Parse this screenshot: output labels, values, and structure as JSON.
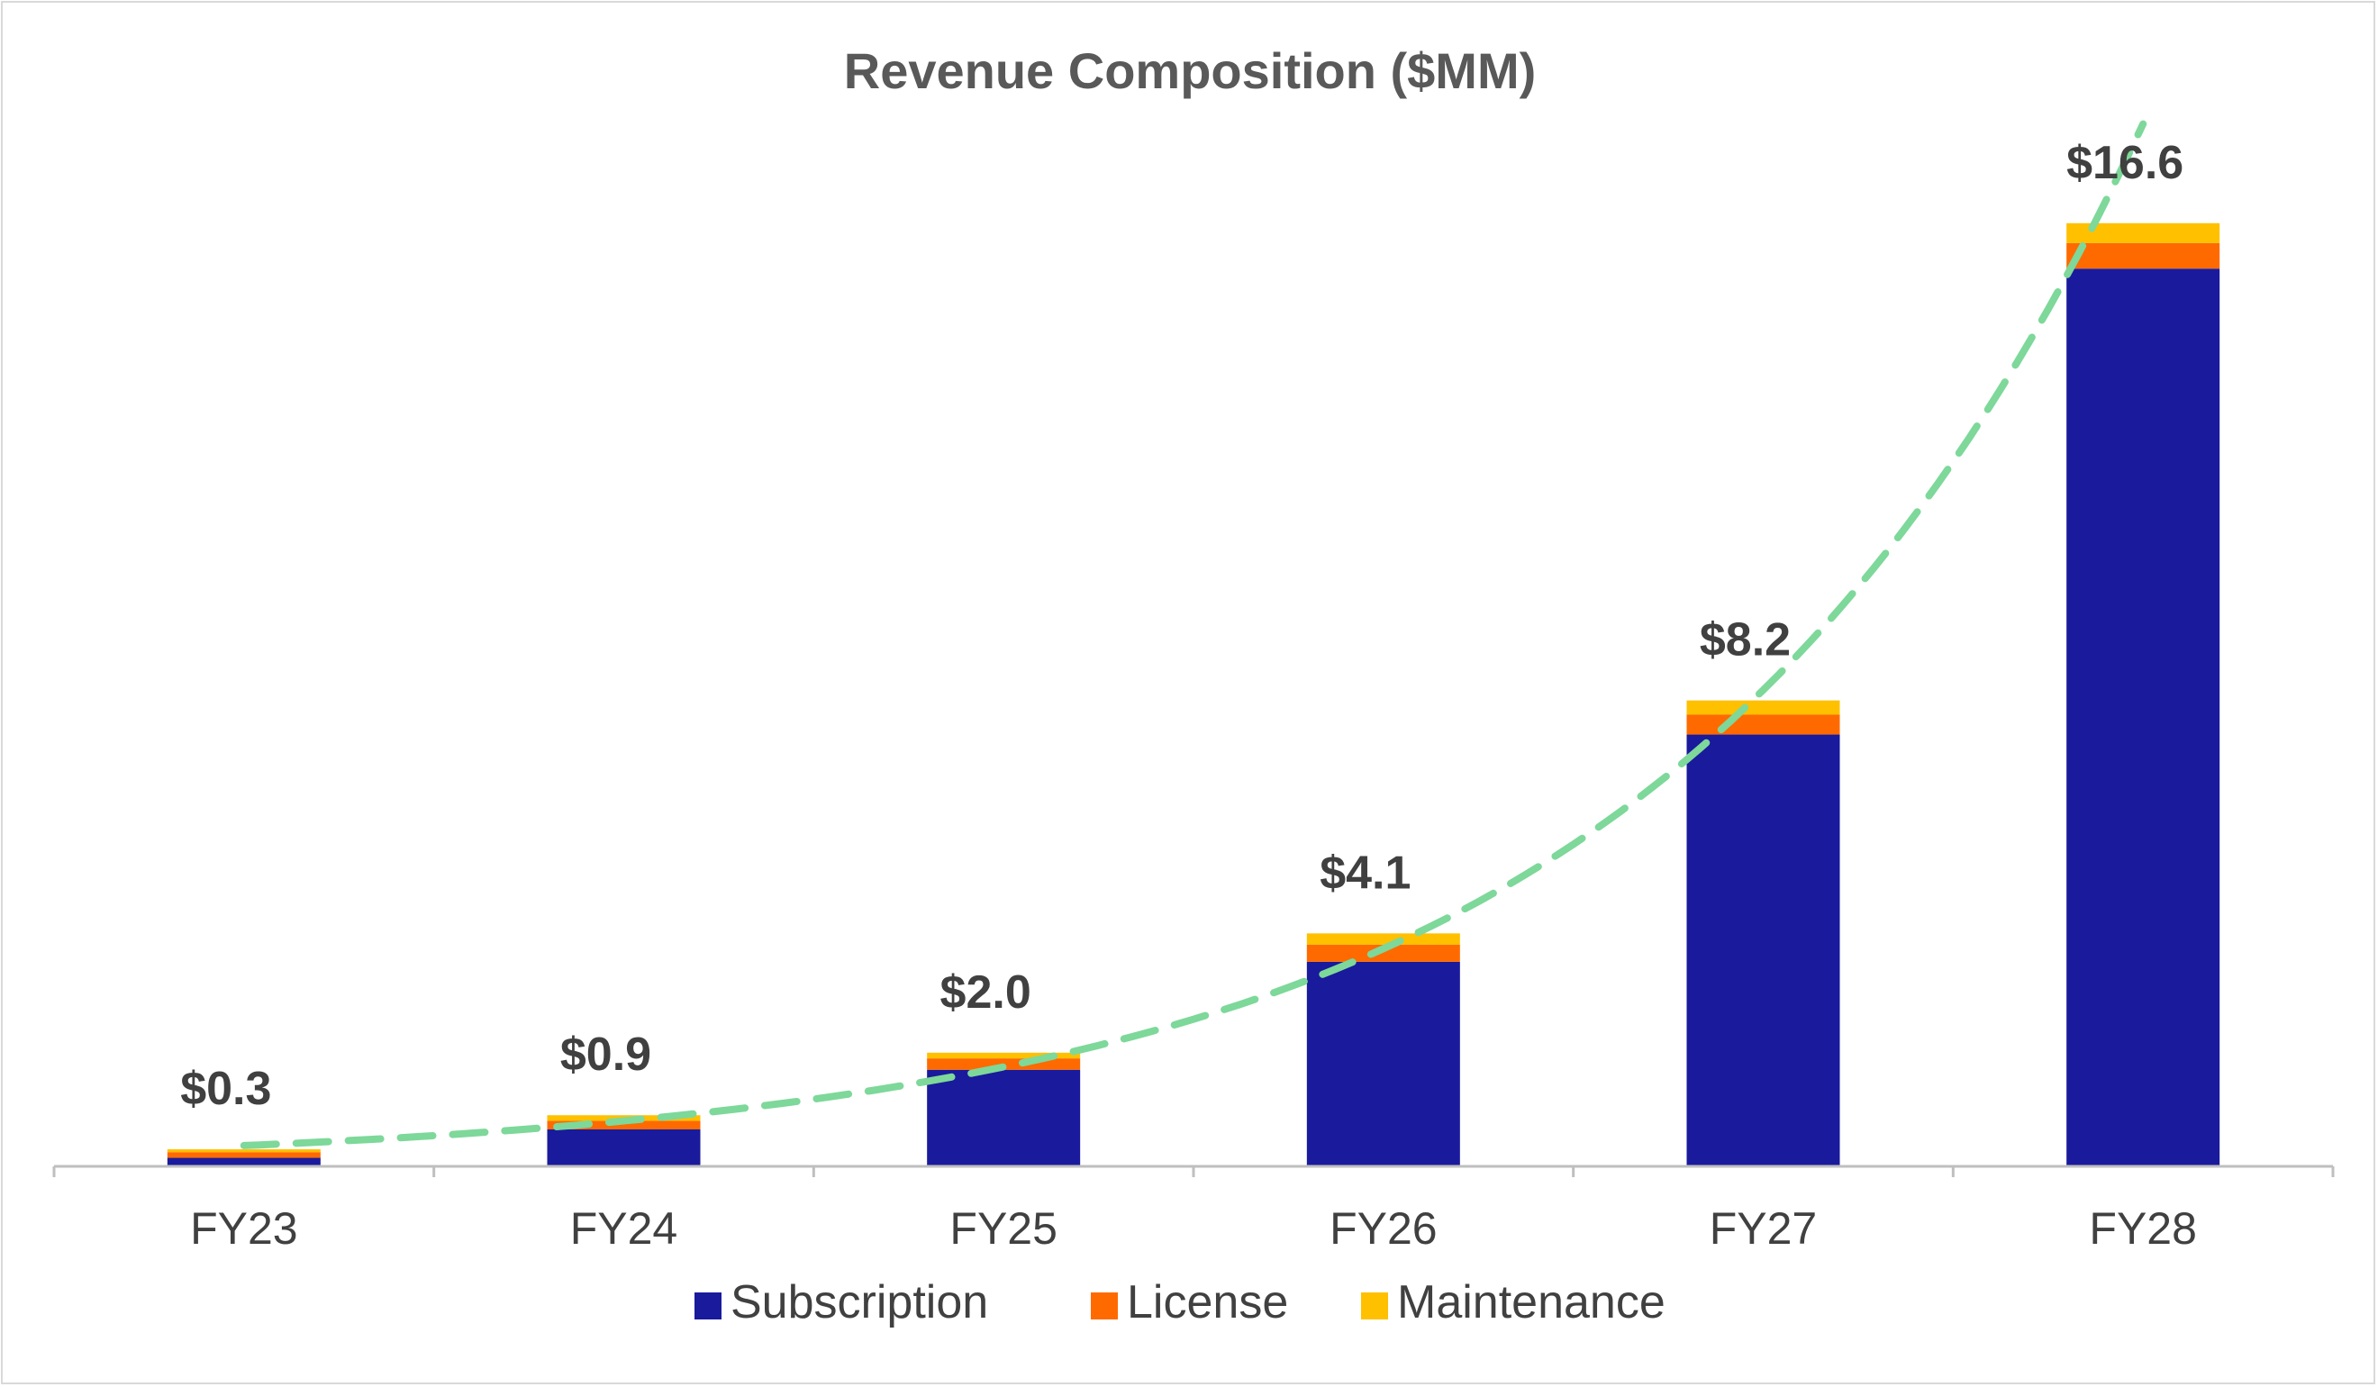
{
  "chart_data": {
    "type": "bar",
    "stacked": true,
    "title": "Revenue Composition ($MM)",
    "xlabel": "",
    "ylabel": "",
    "ylim": [
      0,
      17.5
    ],
    "grid": false,
    "legend_position": "bottom",
    "categories": [
      "FY23",
      "FY24",
      "FY25",
      "FY26",
      "FY27",
      "FY28"
    ],
    "series": [
      {
        "name": "Subscription",
        "color": "#1a1a9c",
        "values": [
          0.15,
          0.65,
          1.7,
          3.6,
          7.6,
          15.8
        ]
      },
      {
        "name": "License",
        "color": "#ff6a00",
        "values": [
          0.1,
          0.15,
          0.2,
          0.3,
          0.35,
          0.45
        ]
      },
      {
        "name": "Maintenance",
        "color": "#ffc000",
        "values": [
          0.05,
          0.1,
          0.1,
          0.2,
          0.25,
          0.35
        ]
      }
    ],
    "totals": [
      0.3,
      0.9,
      2.0,
      4.1,
      8.2,
      16.6
    ],
    "total_labels": [
      "$0.3",
      "$0.9",
      "$2.0",
      "$4.1",
      "$8.2",
      "$16.6"
    ],
    "trendline": {
      "style": "dashed",
      "color": "#7dd89a",
      "type": "exponential"
    }
  }
}
